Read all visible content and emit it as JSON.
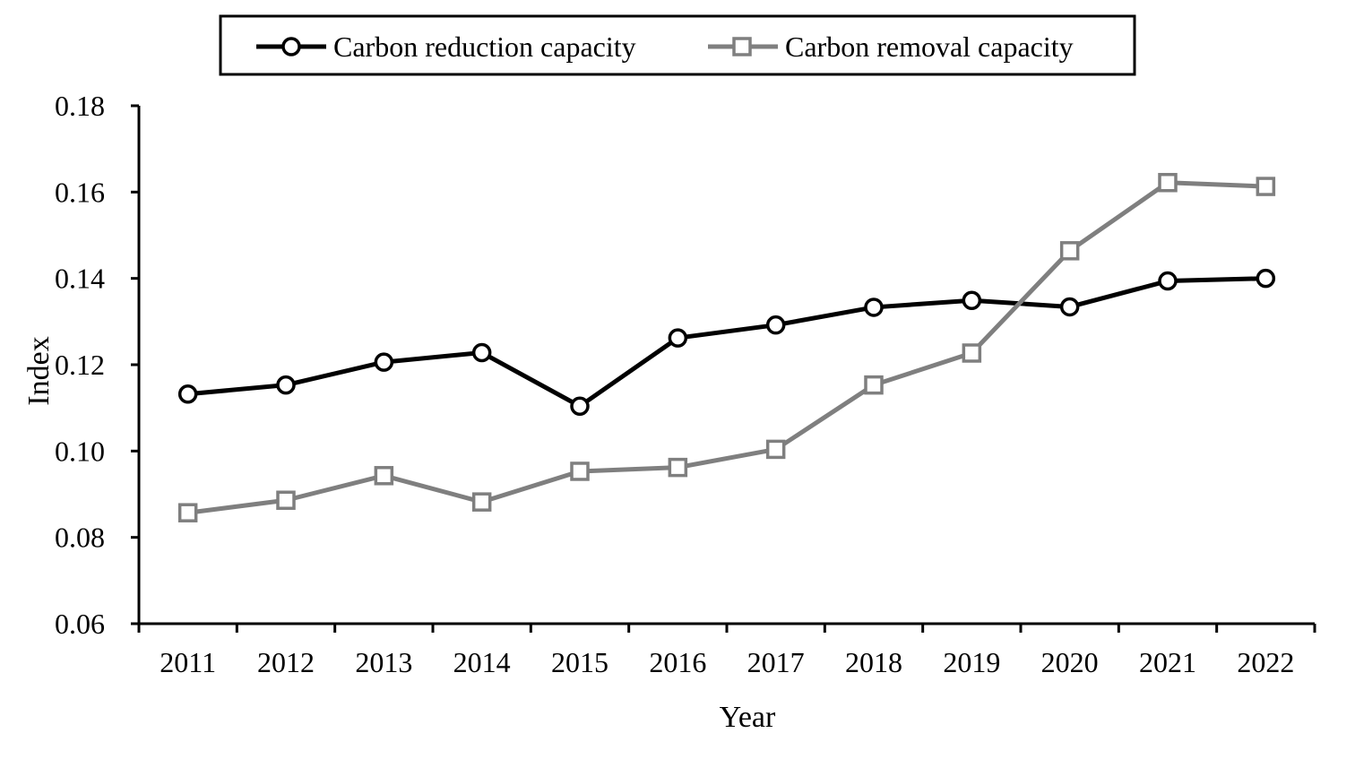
{
  "chart_data": {
    "type": "line",
    "xlabel": "Year",
    "ylabel": "Index",
    "categories": [
      "2011",
      "2012",
      "2013",
      "2014",
      "2015",
      "2016",
      "2017",
      "2018",
      "2019",
      "2020",
      "2021",
      "2022"
    ],
    "ylim": [
      0.06,
      0.18
    ],
    "yticks": [
      "0.06",
      "0.08",
      "0.10",
      "0.12",
      "0.14",
      "0.16",
      "0.18"
    ],
    "grid": false,
    "legend_position": "top-center",
    "series": [
      {
        "name": "Carbon reduction capacity",
        "color": "#000000",
        "marker": "circle",
        "values": [
          0.1132,
          0.1153,
          0.1206,
          0.1228,
          0.1104,
          0.1262,
          0.1292,
          0.1333,
          0.1349,
          0.1334,
          0.1394,
          0.14
        ]
      },
      {
        "name": "Carbon removal capacity",
        "color": "#7f7f7f",
        "marker": "square",
        "values": [
          0.0857,
          0.0886,
          0.0943,
          0.0882,
          0.0953,
          0.0962,
          0.1004,
          0.1153,
          0.1227,
          0.1464,
          0.1622,
          0.1613
        ]
      }
    ]
  }
}
